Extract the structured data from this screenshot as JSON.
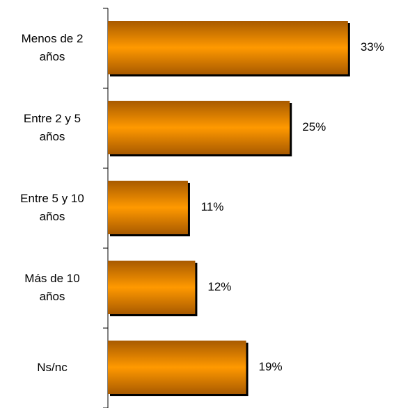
{
  "chart_data": {
    "type": "bar",
    "orientation": "horizontal",
    "categories": [
      "Menos de 2\naños",
      "Entre 2 y 5\naños",
      "Entre 5 y 10\naños",
      "Más de 10\naños",
      "Ns/nc"
    ],
    "values": [
      33,
      25,
      11,
      12,
      19
    ],
    "value_labels": [
      "33%",
      "25%",
      "11%",
      "12%",
      "19%"
    ],
    "color": "#ff9900"
  }
}
